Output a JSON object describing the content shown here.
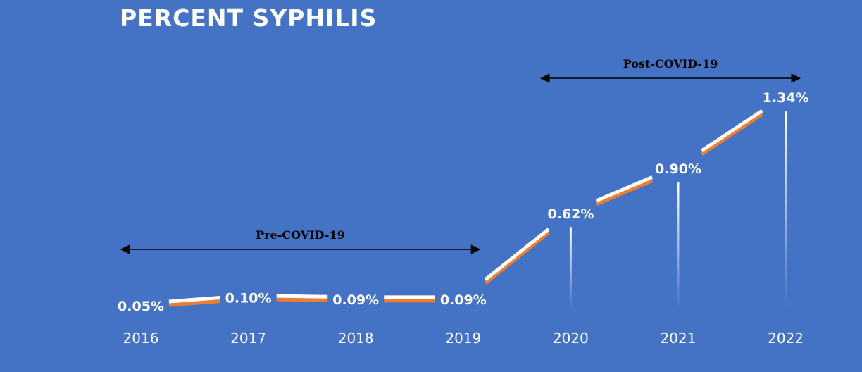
{
  "chart_data": {
    "type": "line",
    "title": "PERCENT SYPHILIS",
    "categories": [
      "2016",
      "2017",
      "2018",
      "2019",
      "2020",
      "2021",
      "2022"
    ],
    "values": [
      0.05,
      0.1,
      0.09,
      0.09,
      0.62,
      0.9,
      1.34
    ],
    "data_labels": [
      "0.05%",
      "0.10%",
      "0.09%",
      "0.09%",
      "0.62%",
      "0.90%",
      "1.34%"
    ],
    "unit": "%",
    "annotations": [
      {
        "label": "Pre-COVID-19",
        "from": "2016",
        "to": "2019"
      },
      {
        "label": "Post-COVID-19",
        "from": "2020",
        "to": "2022"
      }
    ],
    "grid": false,
    "legend": "none"
  },
  "colors": {
    "background": "#4472C4",
    "line_highlight": "#FFFFFF",
    "line_shadow": "#ED7D31",
    "text": "#FFFFFF",
    "annotation": "#000000"
  }
}
